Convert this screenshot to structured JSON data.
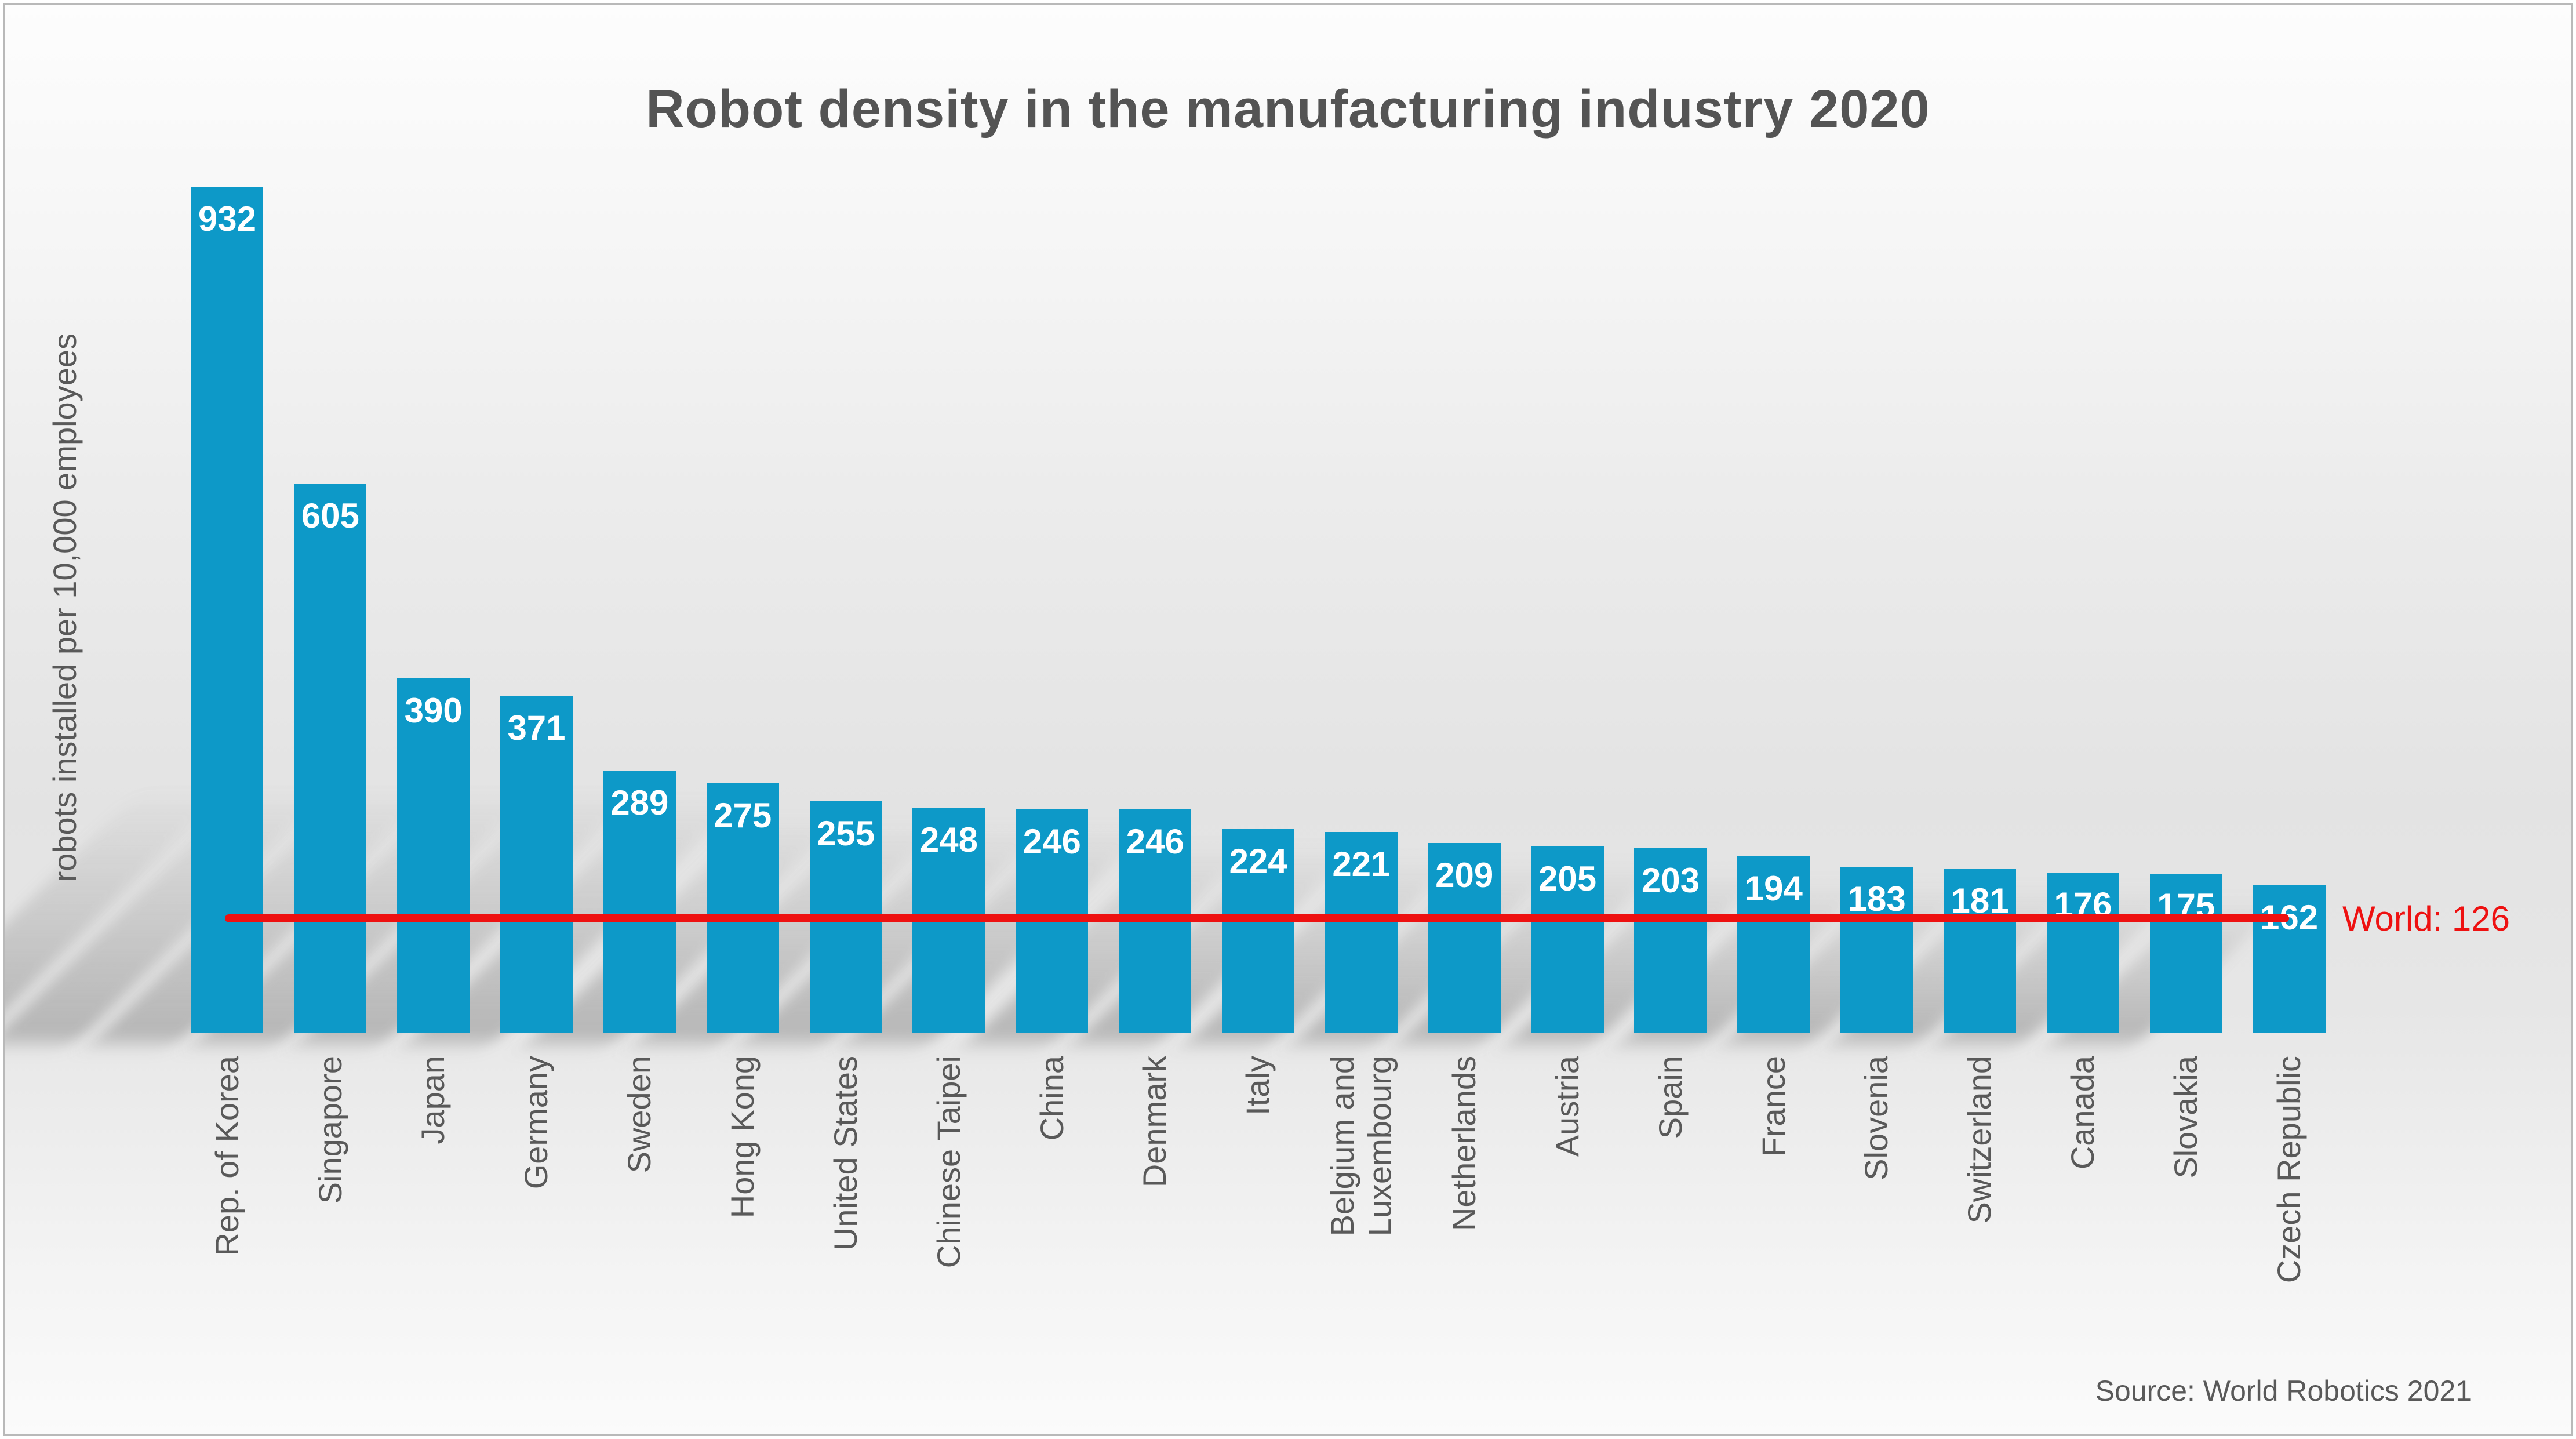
{
  "chart_data": {
    "type": "bar",
    "title": "Robot density in the manufacturing industry 2020",
    "ylabel": "robots installed per 10,000 employees",
    "categories": [
      "Rep. of Korea",
      "Singapore",
      "Japan",
      "Germany",
      "Sweden",
      "Hong Kong",
      "United States",
      "Chinese Taipei",
      "China",
      "Denmark",
      "Italy",
      "Belgium and\nLuxembourg",
      "Netherlands",
      "Austria",
      "Spain",
      "France",
      "Slovenia",
      "Switzerland",
      "Canada",
      "Slovakia",
      "Czech Republic"
    ],
    "values": [
      932,
      605,
      390,
      371,
      289,
      275,
      255,
      248,
      246,
      246,
      224,
      221,
      209,
      205,
      203,
      194,
      183,
      181,
      176,
      175,
      162
    ],
    "reference_line": {
      "label": "World: 126",
      "value": 126
    },
    "source": "Source: World Robotics 2021",
    "ylim": [
      0,
      932
    ],
    "grid": false,
    "legend": "none",
    "value_labels": "inside-top",
    "bar_color": "#0d99c8",
    "reference_color": "#ee1111",
    "title_color": "#545454",
    "label_color": "#595959"
  }
}
